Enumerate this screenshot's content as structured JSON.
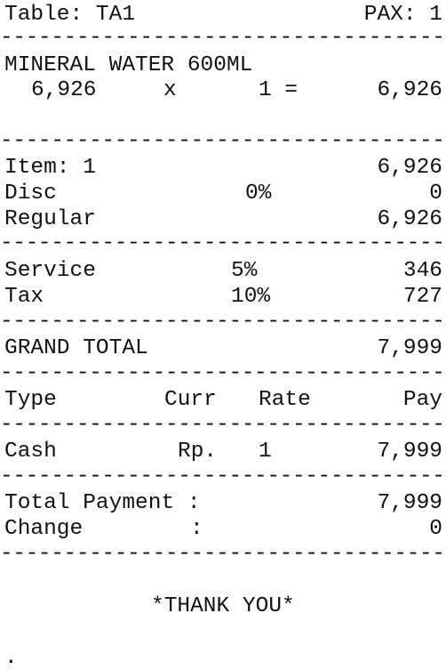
{
  "header": {
    "table_label": "Table: TA1",
    "pax_label": "PAX: 1"
  },
  "separator": "------------------------------------------",
  "items": [
    {
      "name": "MINERAL WATER 600ML",
      "price": "6,926",
      "times": "x",
      "qty_eq": "1 =",
      "amount": "6,926"
    }
  ],
  "summary": {
    "items_label": "Item: 1",
    "items_value": "6,926",
    "disc_label": "Disc",
    "disc_rate": "0%",
    "disc_value": "0",
    "regular_label": "Regular",
    "regular_value": "6,926"
  },
  "charges": {
    "service_label": "Service",
    "service_rate": "5%",
    "service_value": "346",
    "tax_label": "Tax",
    "tax_rate": "10%",
    "tax_value": "727"
  },
  "grand_total": {
    "label": "GRAND TOTAL",
    "value": "7,999"
  },
  "payment_table": {
    "headers": {
      "type": "Type",
      "curr": "Curr",
      "rate": "Rate",
      "pay": "Pay"
    },
    "row": {
      "type": "Cash",
      "curr": "Rp.",
      "rate": "1",
      "pay": "7,999"
    }
  },
  "totals": {
    "payment_label": "Total Payment :",
    "payment_value": "7,999",
    "change_label": "Change",
    "change_colon": ":",
    "change_value": "0"
  },
  "footer": {
    "thank_you": "*THANK YOU*",
    "dot": "."
  }
}
